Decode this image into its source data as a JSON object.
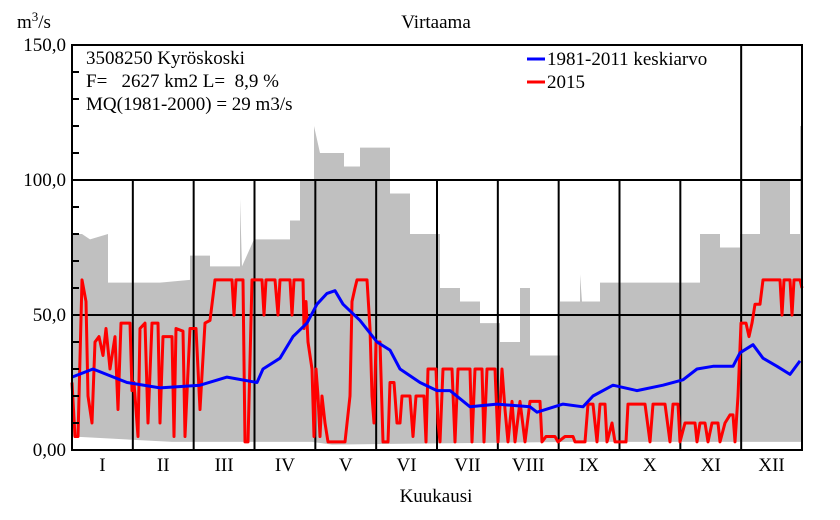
{
  "chart_data": {
    "type": "area",
    "title": "Virtaama",
    "ylabel_base": "m",
    "ylabel_exp": "3",
    "ylabel_tail": "/s",
    "xlabel": "Kuukausi",
    "ylim": [
      0,
      150
    ],
    "xlim": [
      0,
      365
    ],
    "y_ticks": [
      "0,00",
      "50,0",
      "100,0",
      "150,0"
    ],
    "y_tick_values": [
      0,
      50,
      100,
      150
    ],
    "months": [
      "I",
      "II",
      "III",
      "IV",
      "V",
      "VI",
      "VII",
      "VIII",
      "IX",
      "X",
      "XI",
      "XII"
    ],
    "info": [
      "3508250 Kyröskoski",
      "F=   2627 km2 L=  8,9 %",
      "MQ(1981-2000) = 29 m3/s"
    ],
    "legend": [
      {
        "name": "1981-2011 keskiarvo",
        "color": "#0000ff"
      },
      {
        "name": "2015",
        "color": "#ff0000"
      }
    ],
    "band_color": "#c0c0c0",
    "band_max": [
      [
        0,
        80
      ],
      [
        5,
        80
      ],
      [
        9,
        78
      ],
      [
        18,
        80
      ],
      [
        18,
        62
      ],
      [
        44,
        62
      ],
      [
        59,
        63
      ],
      [
        59,
        72
      ],
      [
        69,
        72
      ],
      [
        69,
        68
      ],
      [
        84,
        68
      ],
      [
        84,
        93
      ],
      [
        85,
        68
      ],
      [
        91,
        78
      ],
      [
        109,
        78
      ],
      [
        109,
        85
      ],
      [
        114,
        85
      ],
      [
        114,
        100
      ],
      [
        121,
        100
      ],
      [
        121,
        120
      ],
      [
        124,
        110
      ],
      [
        136,
        110
      ],
      [
        136,
        105
      ],
      [
        144,
        105
      ],
      [
        144,
        112
      ],
      [
        159,
        112
      ],
      [
        159,
        95
      ],
      [
        169,
        95
      ],
      [
        169,
        80
      ],
      [
        184,
        80
      ],
      [
        184,
        60
      ],
      [
        194,
        60
      ],
      [
        194,
        55
      ],
      [
        204,
        55
      ],
      [
        204,
        47
      ],
      [
        214,
        47
      ],
      [
        214,
        40
      ],
      [
        224,
        40
      ],
      [
        224,
        60
      ],
      [
        229,
        60
      ],
      [
        229,
        35
      ],
      [
        244,
        35
      ],
      [
        244,
        55
      ],
      [
        254,
        55
      ],
      [
        254,
        65
      ],
      [
        255,
        55
      ],
      [
        264,
        55
      ],
      [
        264,
        62
      ],
      [
        314,
        62
      ],
      [
        314,
        80
      ],
      [
        324,
        80
      ],
      [
        324,
        75
      ],
      [
        334,
        75
      ],
      [
        334,
        80
      ],
      [
        344,
        80
      ],
      [
        344,
        100
      ],
      [
        359,
        100
      ],
      [
        359,
        80
      ],
      [
        364,
        80
      ],
      [
        364,
        120
      ],
      [
        365,
        120
      ]
    ],
    "band_min": [
      [
        0,
        5
      ],
      [
        50,
        3
      ],
      [
        120,
        3
      ],
      [
        130,
        2
      ],
      [
        250,
        3
      ],
      [
        365,
        3
      ]
    ],
    "series": [
      {
        "name": "1981-2011 keskiarvo",
        "color": "#0000ff",
        "points": [
          [
            0,
            27
          ],
          [
            10.5,
            30
          ],
          [
            27.5,
            25
          ],
          [
            44,
            23
          ],
          [
            64,
            24
          ],
          [
            77.5,
            27
          ],
          [
            92.5,
            25
          ],
          [
            95.5,
            30
          ],
          [
            104,
            34
          ],
          [
            110.5,
            42
          ],
          [
            117.5,
            47
          ],
          [
            122.5,
            54
          ],
          [
            127.5,
            58
          ],
          [
            131.5,
            59
          ],
          [
            135.5,
            54
          ],
          [
            144,
            48
          ],
          [
            152.5,
            40
          ],
          [
            159,
            37
          ],
          [
            164,
            30
          ],
          [
            174,
            25
          ],
          [
            182.5,
            22
          ],
          [
            189,
            22
          ],
          [
            199,
            16
          ],
          [
            212.5,
            17
          ],
          [
            229,
            16
          ],
          [
            232.5,
            14
          ],
          [
            245.5,
            17
          ],
          [
            255.5,
            16
          ],
          [
            260.5,
            20
          ],
          [
            270.5,
            24
          ],
          [
            282.5,
            22
          ],
          [
            295.5,
            24
          ],
          [
            305.5,
            26
          ],
          [
            312.5,
            30
          ],
          [
            320.5,
            31
          ],
          [
            330.5,
            31
          ],
          [
            334,
            36
          ],
          [
            340.5,
            39
          ],
          [
            345.5,
            34
          ],
          [
            352.5,
            31
          ],
          [
            359,
            28
          ],
          [
            364,
            33
          ]
        ]
      },
      {
        "name": "2015",
        "color": "#ff0000",
        "points": [
          [
            0,
            25
          ],
          [
            1.5,
            5
          ],
          [
            3,
            5
          ],
          [
            5,
            63
          ],
          [
            7,
            55
          ],
          [
            8,
            20
          ],
          [
            10,
            10
          ],
          [
            11.5,
            40
          ],
          [
            13.5,
            42
          ],
          [
            15.5,
            35
          ],
          [
            17,
            45
          ],
          [
            19,
            30
          ],
          [
            21.5,
            42
          ],
          [
            23,
            15
          ],
          [
            24.5,
            47
          ],
          [
            29,
            47
          ],
          [
            30,
            22
          ],
          [
            31,
            25
          ],
          [
            33,
            5
          ],
          [
            34,
            45
          ],
          [
            36.5,
            47
          ],
          [
            38,
            10
          ],
          [
            40,
            47
          ],
          [
            43,
            47
          ],
          [
            44,
            10
          ],
          [
            45.5,
            42
          ],
          [
            50,
            42
          ],
          [
            51,
            5
          ],
          [
            52,
            45
          ],
          [
            55.5,
            44
          ],
          [
            56.5,
            5
          ],
          [
            59,
            45
          ],
          [
            62,
            45
          ],
          [
            64,
            15
          ],
          [
            66.5,
            47
          ],
          [
            69,
            48
          ],
          [
            71.5,
            63
          ],
          [
            80,
            63
          ],
          [
            81,
            50
          ],
          [
            82,
            63
          ],
          [
            85.5,
            63
          ],
          [
            86.5,
            3
          ],
          [
            88,
            3
          ],
          [
            90,
            63
          ],
          [
            95,
            63
          ],
          [
            96,
            50
          ],
          [
            97,
            63
          ],
          [
            101.5,
            63
          ],
          [
            103,
            50
          ],
          [
            104,
            63
          ],
          [
            109,
            63
          ],
          [
            110,
            50
          ],
          [
            111,
            63
          ],
          [
            115.5,
            63
          ],
          [
            116,
            45
          ],
          [
            117,
            55
          ],
          [
            118,
            40
          ],
          [
            120,
            30
          ],
          [
            121,
            5
          ],
          [
            122,
            30
          ],
          [
            123,
            20
          ],
          [
            124,
            5
          ],
          [
            125,
            20
          ],
          [
            126.5,
            10
          ],
          [
            128,
            3
          ],
          [
            130,
            3
          ],
          [
            136.5,
            3
          ],
          [
            139,
            20
          ],
          [
            140,
            55
          ],
          [
            141.5,
            60
          ],
          [
            142.5,
            63
          ],
          [
            147.5,
            63
          ],
          [
            149,
            45
          ],
          [
            150,
            20
          ],
          [
            151,
            10
          ],
          [
            152,
            40
          ],
          [
            154,
            40
          ],
          [
            155.5,
            3
          ],
          [
            158,
            3
          ],
          [
            159,
            25
          ],
          [
            161,
            25
          ],
          [
            162.5,
            10
          ],
          [
            164,
            10
          ],
          [
            165,
            20
          ],
          [
            169,
            20
          ],
          [
            170.5,
            5
          ],
          [
            172,
            20
          ],
          [
            176,
            20
          ],
          [
            177,
            3
          ],
          [
            178,
            30
          ],
          [
            182,
            30
          ],
          [
            183,
            10
          ],
          [
            184,
            3
          ],
          [
            185.5,
            30
          ],
          [
            190,
            30
          ],
          [
            191.5,
            3
          ],
          [
            193,
            30
          ],
          [
            199,
            30
          ],
          [
            200,
            3
          ],
          [
            201.5,
            30
          ],
          [
            205,
            30
          ],
          [
            206,
            3
          ],
          [
            207.5,
            30
          ],
          [
            211.5,
            30
          ],
          [
            213,
            3
          ],
          [
            215,
            30
          ],
          [
            216.5,
            15
          ],
          [
            218,
            3
          ],
          [
            220,
            18
          ],
          [
            221.5,
            3
          ],
          [
            224,
            18
          ],
          [
            226.5,
            3
          ],
          [
            229,
            18
          ],
          [
            234,
            18
          ],
          [
            235,
            3
          ],
          [
            237,
            5
          ],
          [
            241.5,
            5
          ],
          [
            243,
            3
          ],
          [
            246.5,
            5
          ],
          [
            250.5,
            5
          ],
          [
            251.5,
            3
          ],
          [
            256.5,
            3
          ],
          [
            258,
            17
          ],
          [
            260.5,
            17
          ],
          [
            262.5,
            3
          ],
          [
            264,
            17
          ],
          [
            266.5,
            17
          ],
          [
            267.5,
            3
          ],
          [
            270,
            10
          ],
          [
            271.5,
            3
          ],
          [
            277,
            3
          ],
          [
            278,
            17
          ],
          [
            286.5,
            17
          ],
          [
            289,
            3
          ],
          [
            290.5,
            17
          ],
          [
            296.5,
            17
          ],
          [
            299,
            3
          ],
          [
            300.5,
            17
          ],
          [
            303,
            17
          ],
          [
            304,
            3
          ],
          [
            306.5,
            10
          ],
          [
            311.5,
            10
          ],
          [
            312.5,
            3
          ],
          [
            314,
            10
          ],
          [
            316.5,
            10
          ],
          [
            318,
            3
          ],
          [
            320,
            10
          ],
          [
            323,
            10
          ],
          [
            324,
            3
          ],
          [
            326.5,
            10
          ],
          [
            329,
            13
          ],
          [
            330.5,
            13
          ],
          [
            331.5,
            3
          ],
          [
            333,
            20
          ],
          [
            334.5,
            47
          ],
          [
            337,
            47
          ],
          [
            338.5,
            42
          ],
          [
            340,
            47
          ],
          [
            341.5,
            54
          ],
          [
            344,
            54
          ],
          [
            345.5,
            63
          ],
          [
            354,
            63
          ],
          [
            355,
            50
          ],
          [
            356,
            63
          ],
          [
            359,
            63
          ],
          [
            360,
            50
          ],
          [
            361,
            63
          ],
          [
            364,
            63
          ],
          [
            365,
            60
          ]
        ]
      }
    ],
    "grid": true,
    "legend_placement": "top-right"
  }
}
